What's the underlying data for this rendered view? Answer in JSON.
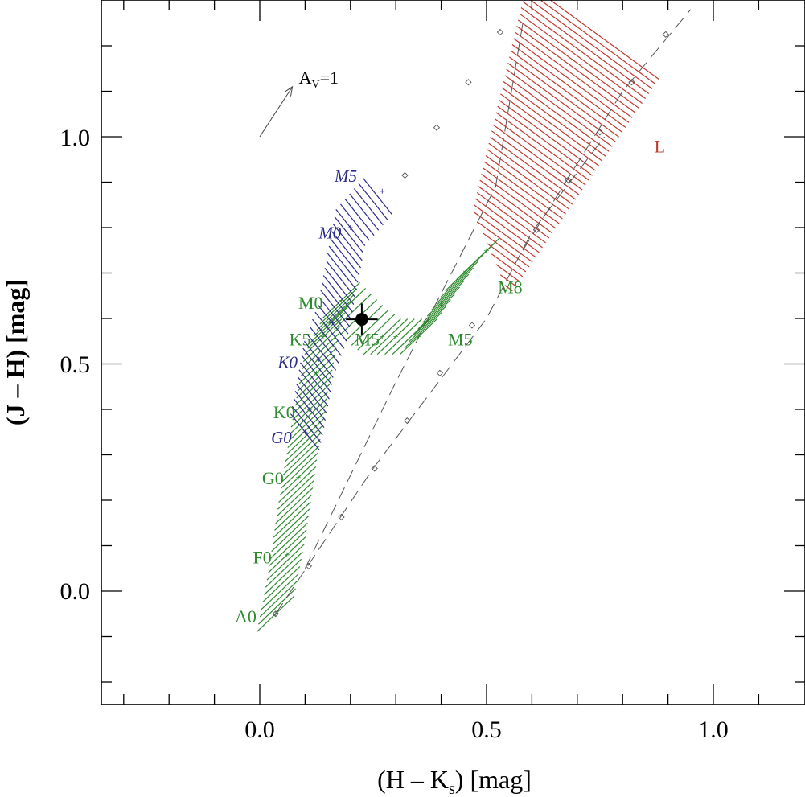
{
  "chart_data": {
    "type": "scatter",
    "xlabel": "(H – K",
    "xlabel_sub": "s",
    "xlabel_tail": ") [mag]",
    "ylabel": "(J – H) [mag]",
    "xlim": [
      -0.35,
      1.2
    ],
    "ylim": [
      -0.25,
      1.3
    ],
    "xticks": [
      0.0,
      0.5,
      1.0
    ],
    "xtick_labels": [
      "0.0",
      "0.5",
      "1.0"
    ],
    "yticks": [
      0.0,
      0.5,
      1.0
    ],
    "ytick_labels": [
      "0.0",
      "0.5",
      "1.0"
    ],
    "x_minor_step": 0.1,
    "y_minor_step": 0.1,
    "grid": false,
    "colors": {
      "dwarf": "#2e8b2e",
      "giant": "#2a2a8a",
      "ldwarf": "#c0392b",
      "reddening": "#555555",
      "target": "#000000"
    },
    "series": [
      {
        "key": "dwarf",
        "points": [
          {
            "x": 0.035,
            "y": -0.05
          },
          {
            "x": 0.06,
            "y": 0.08
          },
          {
            "x": 0.085,
            "y": 0.25
          },
          {
            "x": 0.11,
            "y": 0.4
          },
          {
            "x": 0.125,
            "y": 0.48
          },
          {
            "x": 0.14,
            "y": 0.56
          },
          {
            "x": 0.18,
            "y": 0.64
          },
          {
            "x": 0.23,
            "y": 0.59
          },
          {
            "x": 0.27,
            "y": 0.56
          },
          {
            "x": 0.3,
            "y": 0.56
          },
          {
            "x": 0.35,
            "y": 0.56
          },
          {
            "x": 0.4,
            "y": 0.63
          },
          {
            "x": 0.45,
            "y": 0.7
          },
          {
            "x": 0.5,
            "y": 0.75
          }
        ],
        "labels": [
          {
            "text": "A0",
            "x": -0.055,
            "y": -0.055
          },
          {
            "text": "F0",
            "x": -0.015,
            "y": 0.075
          },
          {
            "text": "G0",
            "x": 0.005,
            "y": 0.25
          },
          {
            "text": "K0",
            "x": 0.03,
            "y": 0.395
          },
          {
            "text": "K5",
            "x": 0.065,
            "y": 0.555
          },
          {
            "text": "M0",
            "x": 0.085,
            "y": 0.635
          },
          {
            "text": "M5",
            "x": 0.21,
            "y": 0.555
          },
          {
            "text": "M5",
            "x": 0.415,
            "y": 0.555
          },
          {
            "text": "M8",
            "x": 0.525,
            "y": 0.67
          }
        ]
      },
      {
        "key": "giant",
        "points": [
          {
            "x": 0.1,
            "y": 0.35
          },
          {
            "x": 0.11,
            "y": 0.4
          },
          {
            "x": 0.13,
            "y": 0.51
          },
          {
            "x": 0.16,
            "y": 0.59
          },
          {
            "x": 0.2,
            "y": 0.8
          },
          {
            "x": 0.27,
            "y": 0.88
          }
        ],
        "labels": [
          {
            "text": "G0",
            "x": 0.025,
            "y": 0.34
          },
          {
            "text": "K0",
            "x": 0.04,
            "y": 0.505
          },
          {
            "text": "M0",
            "x": 0.13,
            "y": 0.79
          },
          {
            "text": "M5",
            "x": 0.165,
            "y": 0.915
          }
        ]
      },
      {
        "key": "ldwarf",
        "labels": [
          {
            "text": "L",
            "x": 0.87,
            "y": 0.98
          }
        ]
      },
      {
        "key": "reddening",
        "lines": [
          {
            "x": [
              0.035,
              0.25,
              0.5,
              0.6,
              0.76
            ],
            "y": [
              -0.05,
              0.27,
              0.6,
              0.79,
              1.0
            ]
          },
          {
            "x": [
              0.1,
              0.3,
              0.52,
              0.58
            ],
            "y": [
              0.05,
              0.46,
              0.89,
              1.25
            ]
          },
          {
            "x": [
              0.58,
              0.8,
              0.95
            ],
            "y": [
              0.75,
              1.1,
              1.28
            ]
          }
        ],
        "markers": [
          {
            "x": 0.035,
            "y": -0.05
          },
          {
            "x": 0.108,
            "y": 0.055
          },
          {
            "x": 0.18,
            "y": 0.163
          },
          {
            "x": 0.253,
            "y": 0.27
          },
          {
            "x": 0.325,
            "y": 0.375
          },
          {
            "x": 0.397,
            "y": 0.48
          },
          {
            "x": 0.468,
            "y": 0.585
          },
          {
            "x": 0.32,
            "y": 0.915
          },
          {
            "x": 0.39,
            "y": 1.02
          },
          {
            "x": 0.46,
            "y": 1.12
          },
          {
            "x": 0.53,
            "y": 1.23
          },
          {
            "x": 0.61,
            "y": 0.795
          },
          {
            "x": 0.68,
            "y": 0.905
          },
          {
            "x": 0.75,
            "y": 1.01
          },
          {
            "x": 0.82,
            "y": 1.12
          },
          {
            "x": 0.895,
            "y": 1.225
          }
        ]
      }
    ],
    "av_vector": {
      "label": "A",
      "label_sub": "V",
      "label_tail": "=1",
      "x0": 0.0,
      "y0": 1.0,
      "x1": 0.072,
      "y1": 1.11
    },
    "target": {
      "x": 0.225,
      "y": 0.598,
      "xerr": 0.035,
      "yerr": 0.035
    }
  }
}
